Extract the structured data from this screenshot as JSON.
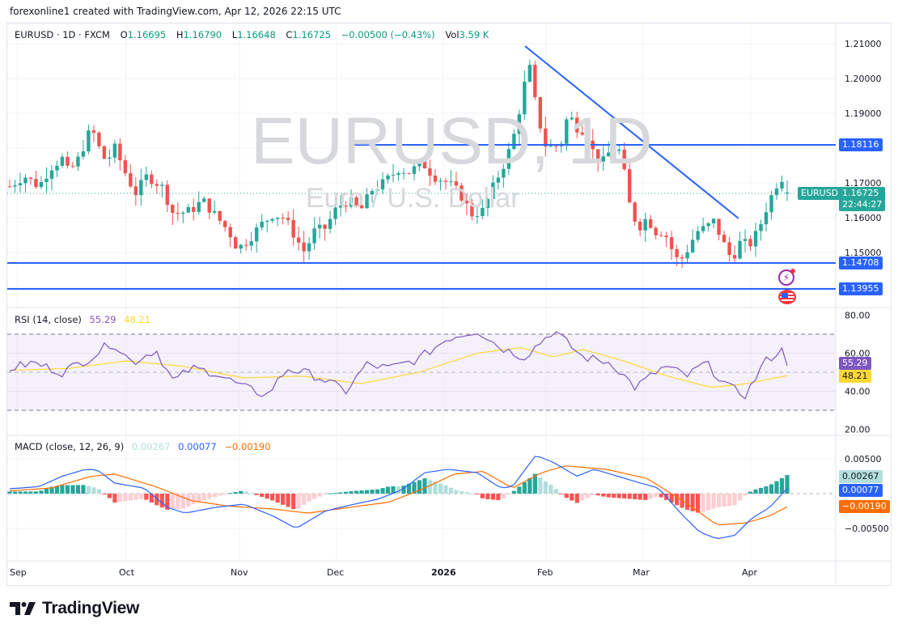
{
  "caption": "forexonline1 created with TradingView.com, Apr 12, 2026 22:15 UTC",
  "symbol_legend": {
    "symbol": "EURUSD · 1D · FXCM",
    "open_label": "O",
    "open": "1.16695",
    "high_label": "H",
    "high": "1.16790",
    "low_label": "L",
    "low": "1.16648",
    "close_label": "C",
    "close": "1.16725",
    "change": "−0.00500 (−0.43%)",
    "vol_label": "Vol",
    "vol": "3.59 K"
  },
  "watermark": {
    "title": "EURUSD, 1D",
    "subtitle": "Euro / U.S. Dollar"
  },
  "price_axis": {
    "ticks": [
      "1.21000",
      "1.20000",
      "1.19000",
      "1.17000",
      "1.16000",
      "1.15000"
    ],
    "levels": [
      {
        "label": "1.18116",
        "color": "#2962ff"
      },
      {
        "label": "1.14708",
        "color": "#2962ff"
      },
      {
        "label": "1.13955",
        "color": "#2962ff"
      }
    ],
    "current_symbol_tag": "EURUSD",
    "current_price": "1.16725",
    "countdown": "22:44:27"
  },
  "rsi": {
    "title": "RSI (14, close)",
    "value": "55.29",
    "ma_value": "48.21",
    "ticks": [
      "80.00",
      "60.00",
      "40.00",
      "20.00"
    ],
    "colors": {
      "rsi": "#7e57c2",
      "ma": "#fdd835"
    }
  },
  "macd": {
    "title": "MACD (close, 12, 26, 9)",
    "histogram": "0.00267",
    "macd": "0.00077",
    "signal": "-0.00190",
    "signal_display": "−0.00190",
    "ticks": [
      "0.00500",
      "−0.00500"
    ],
    "colors": {
      "histogram": "#b2dfdb",
      "macd": "#2962ff",
      "signal": "#ff6d00"
    }
  },
  "time_axis": {
    "labels": [
      "Sep",
      "Oct",
      "Nov",
      "Dec",
      "2026",
      "Feb",
      "Mar",
      "Apr"
    ]
  },
  "brand": {
    "name": "TradingView"
  },
  "colors": {
    "up": "#26a69a",
    "down": "#ef5350",
    "line": "#2962ff",
    "grid": "#f0f3fa"
  },
  "chart_data": {
    "type": "candlestick",
    "title": "EURUSD · 1D · FXCM",
    "xlabel": "",
    "ylabel": "Price",
    "ylim": [
      1.134,
      1.214
    ],
    "x_ticks": [
      "Sep",
      "Oct",
      "Nov",
      "Dec",
      "2026",
      "Feb",
      "Mar",
      "Apr"
    ],
    "last_bar": {
      "open": 1.16695,
      "high": 1.1679,
      "low": 1.16648,
      "close": 1.16725,
      "change": -0.005,
      "change_pct": -0.43
    },
    "horizontal_levels": [
      1.18116,
      1.14708,
      1.13955
    ],
    "trendline": {
      "from": {
        "date": "2026-01-27",
        "price": 1.209
      },
      "to": {
        "date": "2026-03-27",
        "price": 1.16
      }
    },
    "approx_close_path": [
      {
        "month": "Sep",
        "close": 1.17
      },
      {
        "month": "mid-Sep",
        "close": 1.18
      },
      {
        "month": "Oct",
        "close": 1.172
      },
      {
        "month": "mid-Oct",
        "close": 1.163
      },
      {
        "month": "Nov",
        "close": 1.152
      },
      {
        "month": "mid-Nov",
        "close": 1.158
      },
      {
        "month": "Dec",
        "close": 1.162
      },
      {
        "month": "mid-Dec",
        "close": 1.174
      },
      {
        "month": "Jan",
        "close": 1.174
      },
      {
        "month": "mid-Jan",
        "close": 1.16
      },
      {
        "month": "late-Jan",
        "close": 1.203
      },
      {
        "month": "Feb",
        "close": 1.18
      },
      {
        "month": "mid-Feb",
        "close": 1.183
      },
      {
        "month": "Mar",
        "close": 1.165
      },
      {
        "month": "mid-Mar",
        "close": 1.148
      },
      {
        "month": "Apr",
        "close": 1.152
      },
      {
        "month": "Apr 10",
        "close": 1.16725
      }
    ],
    "indicators": {
      "rsi": {
        "period": 14,
        "value": 55.29,
        "ma": 48.21,
        "bands": [
          70,
          50,
          30
        ],
        "ylim": [
          20,
          80
        ]
      },
      "macd": {
        "fast": 12,
        "slow": 26,
        "signal": 9,
        "histogram": 0.00267,
        "macd": 0.00077,
        "signal_value": -0.0019,
        "ylim": [
          -0.008,
          0.008
        ]
      }
    }
  }
}
